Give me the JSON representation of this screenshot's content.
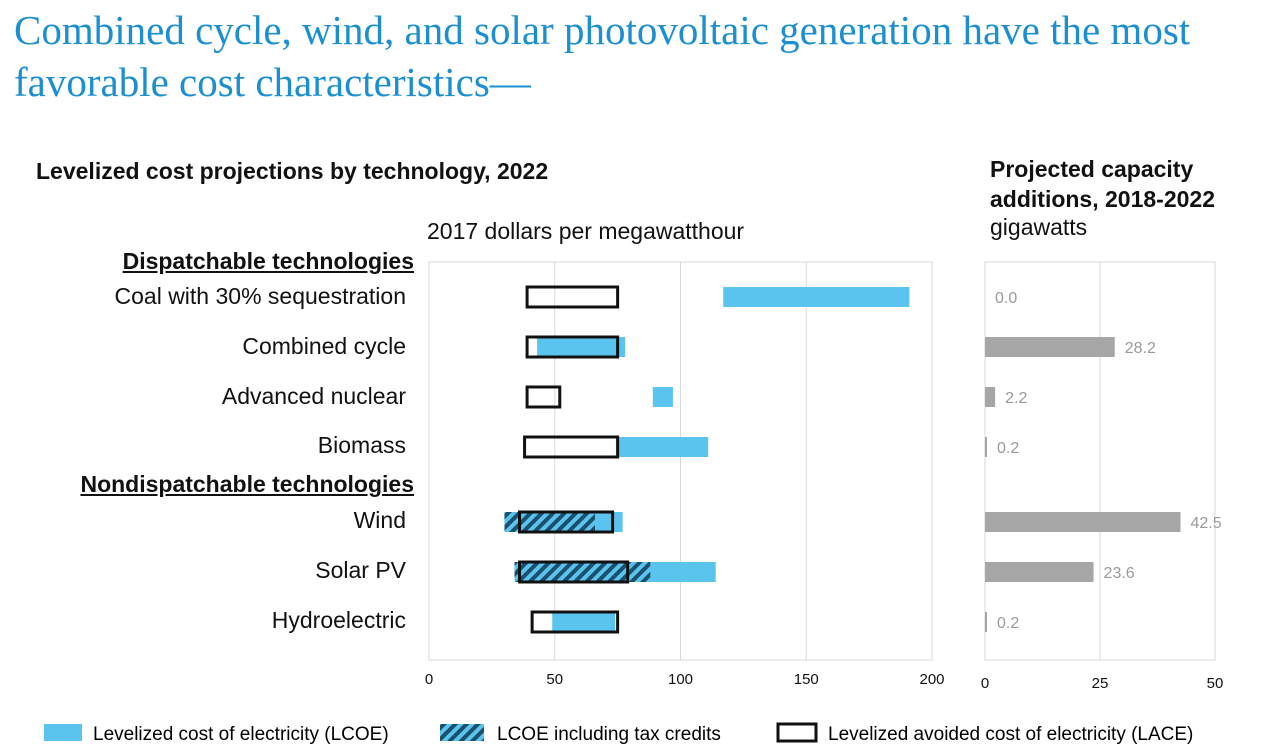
{
  "headline": "Combined cycle, wind, and solar photovoltaic generation have the most favorable cost characteristics—",
  "colors": {
    "lcoe": "#5bc4ee",
    "hatch": "#1a4f6e",
    "lace_border": "#111111",
    "capacity_bar": "#a6a6a6",
    "headline": "#1b8fd0"
  },
  "legend": {
    "lcoe": "Levelized cost of electricity (LCOE)",
    "tax": "LCOE including tax credits",
    "lace": "Levelized avoided cost of electricity (LACE)"
  },
  "groups": {
    "dispatchable": "Dispatchable technologies",
    "nondispatchable": "Nondispatchable technologies"
  },
  "chart_data": [
    {
      "type": "bar",
      "title": "Levelized cost projections by technology, 2022",
      "ylabel": "2017 dollars per megawatthour",
      "xlim": [
        0,
        200
      ],
      "xticks": [
        0,
        50,
        100,
        150,
        200
      ],
      "grid": true,
      "categories": [
        "Coal with 30% sequestration",
        "Combined cycle",
        "Advanced nuclear",
        "Biomass",
        "Wind",
        "Solar PV",
        "Hydroelectric"
      ],
      "series": [
        {
          "name": "Levelized cost of electricity (LCOE)",
          "ranges": [
            [
              117,
              191
            ],
            [
              43,
              78
            ],
            [
              89,
              97
            ],
            [
              75,
              111
            ],
            [
              37,
              77
            ],
            [
              37,
              114
            ],
            [
              49,
              74
            ]
          ]
        },
        {
          "name": "LCOE including tax credits",
          "ranges": [
            null,
            null,
            null,
            null,
            [
              30,
              66
            ],
            [
              34,
              88
            ],
            null
          ]
        },
        {
          "name": "Levelized avoided cost of electricity (LACE)",
          "ranges": [
            [
              39,
              75
            ],
            [
              39,
              75
            ],
            [
              39,
              52
            ],
            [
              38,
              75
            ],
            [
              36,
              73
            ],
            [
              36,
              79
            ],
            [
              41,
              75
            ]
          ]
        }
      ]
    },
    {
      "type": "bar",
      "title": "Projected capacity additions, 2018-2022",
      "ylabel": "gigawatts",
      "xlim": [
        0,
        50
      ],
      "xticks": [
        0,
        25,
        50
      ],
      "grid": true,
      "categories": [
        "Coal with 30% sequestration",
        "Combined cycle",
        "Advanced nuclear",
        "Biomass",
        "Wind",
        "Solar PV",
        "Hydroelectric"
      ],
      "values": [
        0.0,
        28.2,
        2.2,
        0.2,
        42.5,
        23.6,
        0.2
      ],
      "value_labels": [
        "0.0",
        "28.2",
        "2.2",
        "0.2",
        "42.5",
        "23.6",
        "0.2"
      ]
    }
  ]
}
